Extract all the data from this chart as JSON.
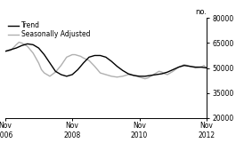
{
  "ylabel_text": "no.",
  "ylim": [
    20000,
    80000
  ],
  "yticks": [
    20000,
    35000,
    50000,
    65000,
    80000
  ],
  "xtick_labels": [
    "Nov\n2006",
    "Nov\n2008",
    "Nov\n2010",
    "Nov\n2012"
  ],
  "xtick_positions": [
    0,
    24,
    48,
    72
  ],
  "legend_entries": [
    "Trend",
    "Seasonally Adjusted"
  ],
  "trend_color": "#000000",
  "seasonal_color": "#b0b0b0",
  "background_color": "#ffffff",
  "trend_linewidth": 1.0,
  "seasonal_linewidth": 1.0,
  "trend_x": [
    0,
    2,
    4,
    6,
    8,
    10,
    12,
    14,
    16,
    18,
    20,
    22,
    24,
    26,
    28,
    30,
    32,
    34,
    36,
    38,
    40,
    42,
    44,
    46,
    48,
    50,
    52,
    54,
    56,
    58,
    60,
    62,
    64,
    66,
    68,
    70,
    72
  ],
  "trend_y": [
    60000,
    61000,
    62000,
    63500,
    64500,
    64000,
    62000,
    58000,
    53000,
    48000,
    46000,
    45000,
    46000,
    49000,
    53000,
    56500,
    57500,
    57500,
    56500,
    54000,
    51000,
    48500,
    46500,
    45500,
    45000,
    45000,
    45500,
    46000,
    46500,
    47500,
    49000,
    50500,
    51500,
    51000,
    50500,
    50500,
    50000
  ],
  "seasonal_x": [
    0,
    2,
    4,
    5,
    6,
    7,
    8,
    10,
    12,
    13,
    14,
    16,
    18,
    20,
    22,
    24,
    25,
    26,
    27,
    28,
    30,
    32,
    33,
    34,
    36,
    38,
    40,
    42,
    44,
    46,
    48,
    49,
    50,
    51,
    52,
    54,
    55,
    56,
    57,
    58,
    60,
    62,
    64,
    66,
    68,
    70,
    71,
    72
  ],
  "seasonal_y": [
    60000,
    60500,
    64000,
    65500,
    65000,
    64000,
    63000,
    59000,
    53000,
    49000,
    47000,
    45000,
    47500,
    51500,
    56500,
    58000,
    58000,
    57500,
    57000,
    56000,
    54500,
    51000,
    49000,
    47000,
    46000,
    45000,
    44500,
    45000,
    46000,
    45500,
    44500,
    44000,
    43500,
    44000,
    45000,
    47000,
    48000,
    47500,
    46500,
    46000,
    48000,
    50500,
    52000,
    51000,
    50000,
    50500,
    51500,
    50000
  ]
}
